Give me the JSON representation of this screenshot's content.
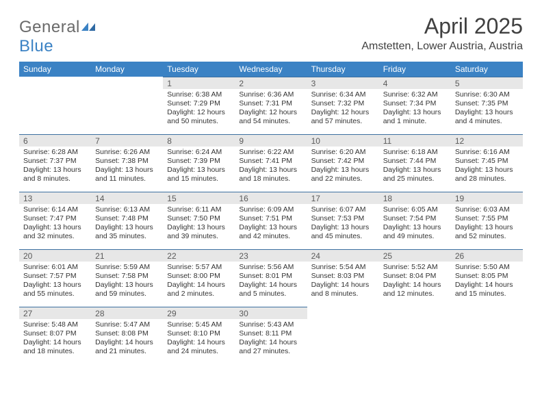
{
  "brand": {
    "general": "General",
    "blue": "Blue"
  },
  "title": "April 2025",
  "location": "Amstetten, Lower Austria, Austria",
  "colors": {
    "header_bg": "#3b82c4",
    "header_text": "#ffffff",
    "daynum_bg": "#e7e7e7",
    "daynum_border": "#3b6fa0",
    "body_bg": "#ffffff",
    "text": "#333333",
    "logo_gray": "#6a6a6a",
    "logo_blue": "#3b82c4"
  },
  "calendar": {
    "type": "table",
    "day_names": [
      "Sunday",
      "Monday",
      "Tuesday",
      "Wednesday",
      "Thursday",
      "Friday",
      "Saturday"
    ],
    "weeks": [
      [
        {
          "empty": true
        },
        {
          "empty": true
        },
        {
          "num": "1",
          "sunrise": "Sunrise: 6:38 AM",
          "sunset": "Sunset: 7:29 PM",
          "daylight": "Daylight: 12 hours and 50 minutes."
        },
        {
          "num": "2",
          "sunrise": "Sunrise: 6:36 AM",
          "sunset": "Sunset: 7:31 PM",
          "daylight": "Daylight: 12 hours and 54 minutes."
        },
        {
          "num": "3",
          "sunrise": "Sunrise: 6:34 AM",
          "sunset": "Sunset: 7:32 PM",
          "daylight": "Daylight: 12 hours and 57 minutes."
        },
        {
          "num": "4",
          "sunrise": "Sunrise: 6:32 AM",
          "sunset": "Sunset: 7:34 PM",
          "daylight": "Daylight: 13 hours and 1 minute."
        },
        {
          "num": "5",
          "sunrise": "Sunrise: 6:30 AM",
          "sunset": "Sunset: 7:35 PM",
          "daylight": "Daylight: 13 hours and 4 minutes."
        }
      ],
      [
        {
          "num": "6",
          "sunrise": "Sunrise: 6:28 AM",
          "sunset": "Sunset: 7:37 PM",
          "daylight": "Daylight: 13 hours and 8 minutes."
        },
        {
          "num": "7",
          "sunrise": "Sunrise: 6:26 AM",
          "sunset": "Sunset: 7:38 PM",
          "daylight": "Daylight: 13 hours and 11 minutes."
        },
        {
          "num": "8",
          "sunrise": "Sunrise: 6:24 AM",
          "sunset": "Sunset: 7:39 PM",
          "daylight": "Daylight: 13 hours and 15 minutes."
        },
        {
          "num": "9",
          "sunrise": "Sunrise: 6:22 AM",
          "sunset": "Sunset: 7:41 PM",
          "daylight": "Daylight: 13 hours and 18 minutes."
        },
        {
          "num": "10",
          "sunrise": "Sunrise: 6:20 AM",
          "sunset": "Sunset: 7:42 PM",
          "daylight": "Daylight: 13 hours and 22 minutes."
        },
        {
          "num": "11",
          "sunrise": "Sunrise: 6:18 AM",
          "sunset": "Sunset: 7:44 PM",
          "daylight": "Daylight: 13 hours and 25 minutes."
        },
        {
          "num": "12",
          "sunrise": "Sunrise: 6:16 AM",
          "sunset": "Sunset: 7:45 PM",
          "daylight": "Daylight: 13 hours and 28 minutes."
        }
      ],
      [
        {
          "num": "13",
          "sunrise": "Sunrise: 6:14 AM",
          "sunset": "Sunset: 7:47 PM",
          "daylight": "Daylight: 13 hours and 32 minutes."
        },
        {
          "num": "14",
          "sunrise": "Sunrise: 6:13 AM",
          "sunset": "Sunset: 7:48 PM",
          "daylight": "Daylight: 13 hours and 35 minutes."
        },
        {
          "num": "15",
          "sunrise": "Sunrise: 6:11 AM",
          "sunset": "Sunset: 7:50 PM",
          "daylight": "Daylight: 13 hours and 39 minutes."
        },
        {
          "num": "16",
          "sunrise": "Sunrise: 6:09 AM",
          "sunset": "Sunset: 7:51 PM",
          "daylight": "Daylight: 13 hours and 42 minutes."
        },
        {
          "num": "17",
          "sunrise": "Sunrise: 6:07 AM",
          "sunset": "Sunset: 7:53 PM",
          "daylight": "Daylight: 13 hours and 45 minutes."
        },
        {
          "num": "18",
          "sunrise": "Sunrise: 6:05 AM",
          "sunset": "Sunset: 7:54 PM",
          "daylight": "Daylight: 13 hours and 49 minutes."
        },
        {
          "num": "19",
          "sunrise": "Sunrise: 6:03 AM",
          "sunset": "Sunset: 7:55 PM",
          "daylight": "Daylight: 13 hours and 52 minutes."
        }
      ],
      [
        {
          "num": "20",
          "sunrise": "Sunrise: 6:01 AM",
          "sunset": "Sunset: 7:57 PM",
          "daylight": "Daylight: 13 hours and 55 minutes."
        },
        {
          "num": "21",
          "sunrise": "Sunrise: 5:59 AM",
          "sunset": "Sunset: 7:58 PM",
          "daylight": "Daylight: 13 hours and 59 minutes."
        },
        {
          "num": "22",
          "sunrise": "Sunrise: 5:57 AM",
          "sunset": "Sunset: 8:00 PM",
          "daylight": "Daylight: 14 hours and 2 minutes."
        },
        {
          "num": "23",
          "sunrise": "Sunrise: 5:56 AM",
          "sunset": "Sunset: 8:01 PM",
          "daylight": "Daylight: 14 hours and 5 minutes."
        },
        {
          "num": "24",
          "sunrise": "Sunrise: 5:54 AM",
          "sunset": "Sunset: 8:03 PM",
          "daylight": "Daylight: 14 hours and 8 minutes."
        },
        {
          "num": "25",
          "sunrise": "Sunrise: 5:52 AM",
          "sunset": "Sunset: 8:04 PM",
          "daylight": "Daylight: 14 hours and 12 minutes."
        },
        {
          "num": "26",
          "sunrise": "Sunrise: 5:50 AM",
          "sunset": "Sunset: 8:05 PM",
          "daylight": "Daylight: 14 hours and 15 minutes."
        }
      ],
      [
        {
          "num": "27",
          "sunrise": "Sunrise: 5:48 AM",
          "sunset": "Sunset: 8:07 PM",
          "daylight": "Daylight: 14 hours and 18 minutes."
        },
        {
          "num": "28",
          "sunrise": "Sunrise: 5:47 AM",
          "sunset": "Sunset: 8:08 PM",
          "daylight": "Daylight: 14 hours and 21 minutes."
        },
        {
          "num": "29",
          "sunrise": "Sunrise: 5:45 AM",
          "sunset": "Sunset: 8:10 PM",
          "daylight": "Daylight: 14 hours and 24 minutes."
        },
        {
          "num": "30",
          "sunrise": "Sunrise: 5:43 AM",
          "sunset": "Sunset: 8:11 PM",
          "daylight": "Daylight: 14 hours and 27 minutes."
        },
        {
          "empty": true
        },
        {
          "empty": true
        },
        {
          "empty": true
        }
      ]
    ]
  }
}
